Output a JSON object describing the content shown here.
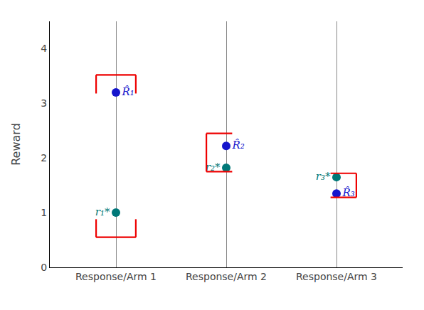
{
  "chart_data": {
    "type": "scatter",
    "ylabel": "Reward",
    "categories": [
      "Response/Arm 1",
      "Response/Arm 2",
      "Response/Arm 3"
    ],
    "series": [
      {
        "color": "#007878",
        "marker": "circle",
        "values": [
          1.0,
          1.82,
          1.65
        ],
        "point_labels": [
          "r₁*",
          "r₂*",
          "r₃*"
        ],
        "label_side": "left"
      },
      {
        "color": "#1515CC",
        "marker": "circle",
        "values": [
          3.2,
          2.22,
          1.35
        ],
        "point_labels": [
          "R̂₁",
          "R̂₂",
          "R̂₃"
        ],
        "label_side": "right"
      }
    ],
    "brackets": {
      "color": "#EE0000",
      "items": [
        {
          "category": "Response/Arm 1",
          "low": 3.18,
          "high": 3.52,
          "shape": "top"
        },
        {
          "category": "Response/Arm 1",
          "low": 0.55,
          "high": 0.88,
          "shape": "bottom"
        },
        {
          "category": "Response/Arm 2",
          "low": 1.75,
          "high": 2.45,
          "shape": "left"
        },
        {
          "category": "Response/Arm 3",
          "low": 1.28,
          "high": 1.72,
          "shape": "right"
        }
      ]
    },
    "ylim": [
      0,
      4.5
    ],
    "yticks": [
      0,
      1,
      2,
      3,
      4
    ],
    "grid": "x"
  }
}
